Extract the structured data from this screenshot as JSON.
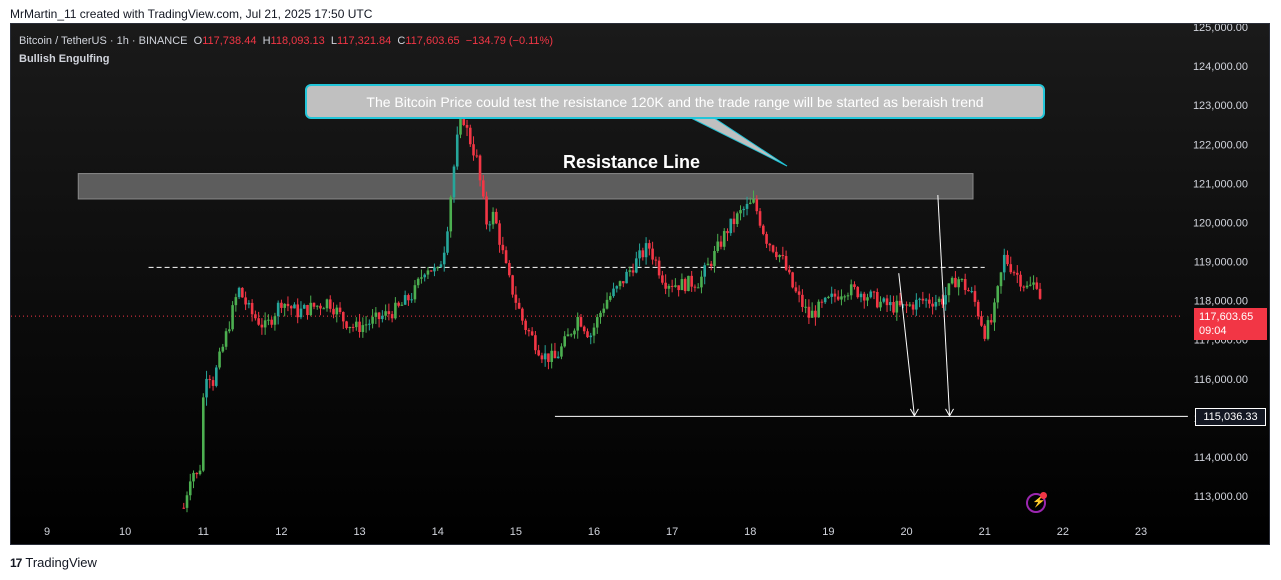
{
  "header": {
    "attribution": "MrMartin_11 created with TradingView.com, Jul 21, 2025 17:50 UTC"
  },
  "legend": {
    "symbol": "Bitcoin / TetherUS · 1h · BINANCE",
    "o_label": "O",
    "o_value": "117,738.44",
    "h_label": "H",
    "h_value": "118,093.13",
    "l_label": "L",
    "l_value": "117,321.84",
    "c_label": "C",
    "c_value": "117,603.65",
    "change": "−134.79 (−0.11%)",
    "indicator": "Bullish Engulfing"
  },
  "annotations": {
    "callout": "The Bitcoin Price could test the resistance 120K and the trade range will be started as beraish trend",
    "resistance_label": "Resistance Line"
  },
  "price_tag": {
    "price": "117,603.65",
    "countdown": "09:04"
  },
  "level_tag": "115,036.33",
  "footer": {
    "brand": "TradingView",
    "logo": "tradingview-logo"
  },
  "colors": {
    "up": "#26a69a",
    "up_alt": "#4caf50",
    "down": "#f23645",
    "accent": "#22c5d8",
    "bg": "#000000"
  },
  "chart_data": {
    "type": "candlestick",
    "symbol": "BTCUSDT",
    "timeframe": "1h",
    "y_ticks": [
      113000,
      114000,
      115000,
      116000,
      117000,
      118000,
      119000,
      120000,
      121000,
      122000,
      123000,
      124000,
      125000
    ],
    "y_tick_labels": [
      "113,000.00",
      "114,000.00",
      "115,000.00",
      "116,000.00",
      "117,000.00",
      "118,000.00",
      "119,000.00",
      "120,000.00",
      "121,000.00",
      "122,000.00",
      "123,000.00",
      "124,000.00",
      "125,000.00"
    ],
    "x_ticks": [
      9,
      10,
      11,
      12,
      13,
      14,
      15,
      16,
      17,
      18,
      19,
      20,
      21,
      22,
      23
    ],
    "x_tick_labels": [
      "9",
      "10",
      "11",
      "12",
      "13",
      "14",
      "15",
      "16",
      "17",
      "18",
      "19",
      "20",
      "21",
      "22",
      "23"
    ],
    "ylim": [
      112500,
      125200
    ],
    "xlim": [
      8.6,
      23.6
    ],
    "resistance_zone": {
      "x_range": [
        9.4,
        20.85
      ],
      "y_range": [
        120600,
        121250
      ]
    },
    "dashed_range_line": {
      "x_range": [
        10.3,
        21.0
      ],
      "y": 118850
    },
    "support_line": {
      "x_range": [
        15.5,
        23.6
      ],
      "y": 115036.33
    },
    "current_price": 117603.65,
    "projection_paths": [
      {
        "points": [
          [
            19.9,
            118700
          ],
          [
            20.1,
            115050
          ]
        ]
      },
      {
        "points": [
          [
            20.4,
            120700
          ],
          [
            20.55,
            115050
          ]
        ]
      }
    ],
    "path_keypoints": [
      [
        10.75,
        112700
      ],
      [
        10.85,
        113700
      ],
      [
        10.95,
        113400
      ],
      [
        11.0,
        115500
      ],
      [
        11.05,
        116300
      ],
      [
        11.12,
        115900
      ],
      [
        11.25,
        116800
      ],
      [
        11.45,
        118300
      ],
      [
        11.6,
        117700
      ],
      [
        11.8,
        117300
      ],
      [
        12.0,
        118000
      ],
      [
        12.2,
        117700
      ],
      [
        12.5,
        117900
      ],
      [
        12.6,
        118000
      ],
      [
        12.8,
        117500
      ],
      [
        12.95,
        117300
      ],
      [
        13.2,
        117500
      ],
      [
        13.5,
        117800
      ],
      [
        13.7,
        118200
      ],
      [
        13.85,
        118900
      ],
      [
        14.0,
        118700
      ],
      [
        14.1,
        119500
      ],
      [
        14.2,
        121300
      ],
      [
        14.3,
        122900
      ],
      [
        14.38,
        122300
      ],
      [
        14.5,
        121600
      ],
      [
        14.62,
        120000
      ],
      [
        14.72,
        120200
      ],
      [
        14.9,
        118600
      ],
      [
        15.1,
        117400
      ],
      [
        15.35,
        116600
      ],
      [
        15.5,
        116500
      ],
      [
        15.65,
        117000
      ],
      [
        15.8,
        117600
      ],
      [
        15.95,
        117100
      ],
      [
        16.15,
        118000
      ],
      [
        16.3,
        118300
      ],
      [
        16.5,
        118900
      ],
      [
        16.7,
        119400
      ],
      [
        16.9,
        118500
      ],
      [
        17.1,
        118400
      ],
      [
        17.35,
        118500
      ],
      [
        17.55,
        119200
      ],
      [
        17.7,
        119800
      ],
      [
        17.9,
        120300
      ],
      [
        18.05,
        120500
      ],
      [
        18.2,
        119600
      ],
      [
        18.4,
        119100
      ],
      [
        18.55,
        118300
      ],
      [
        18.75,
        117600
      ],
      [
        18.95,
        117900
      ],
      [
        19.2,
        118300
      ],
      [
        19.45,
        118200
      ],
      [
        19.7,
        117900
      ],
      [
        19.95,
        117800
      ],
      [
        20.2,
        118000
      ],
      [
        20.45,
        118000
      ],
      [
        20.65,
        118600
      ],
      [
        20.85,
        118100
      ],
      [
        21.0,
        117200
      ],
      [
        21.1,
        117500
      ],
      [
        21.25,
        119100
      ],
      [
        21.4,
        118700
      ],
      [
        21.55,
        118300
      ],
      [
        21.68,
        118500
      ],
      [
        21.75,
        117600
      ]
    ]
  }
}
